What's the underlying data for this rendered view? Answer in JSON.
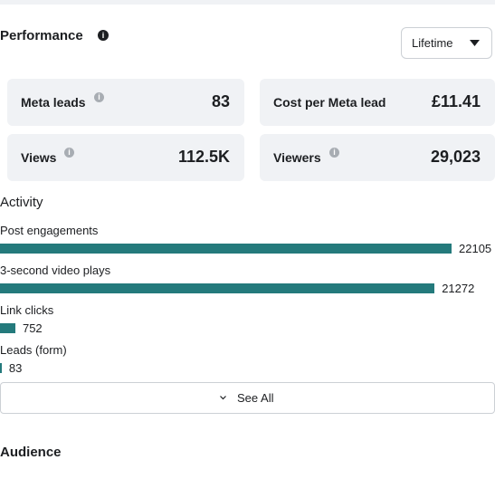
{
  "header": {
    "title": "Performance",
    "dropdown": "Lifetime"
  },
  "metrics": [
    {
      "label": "Meta leads",
      "value": "83",
      "info": true
    },
    {
      "label": "Cost per Meta lead",
      "value": "£11.41",
      "info": false
    },
    {
      "label": "Views",
      "value": "112.5K",
      "info": true
    },
    {
      "label": "Viewers",
      "value": "29,023",
      "info": true
    }
  ],
  "activity": {
    "title": "Activity",
    "color": "#247a7c",
    "items": [
      {
        "label": "Post engagements",
        "value": 22105
      },
      {
        "label": "3-second video plays",
        "value": 21272
      },
      {
        "label": "Link clicks",
        "value": 752
      },
      {
        "label": "Leads (form)",
        "value": 83
      }
    ]
  },
  "see_all": "See All",
  "audience": {
    "title": "Audience"
  }
}
